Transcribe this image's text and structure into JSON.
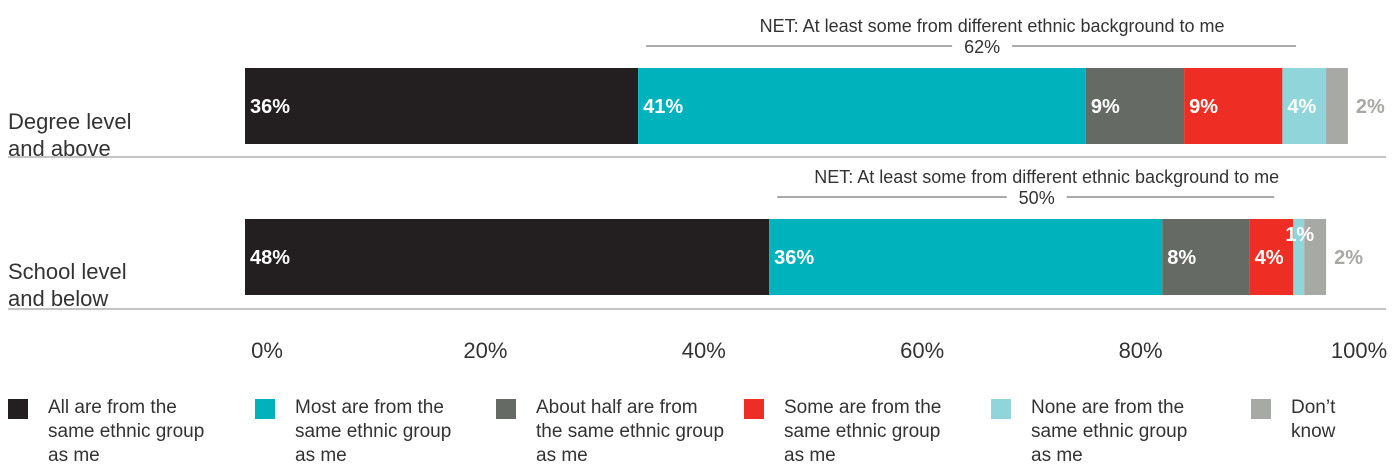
{
  "chart_data": {
    "type": "bar",
    "orientation": "horizontal",
    "stacked": true,
    "categories": [
      "Degree level\nand above",
      "School level\nand below"
    ],
    "series": [
      {
        "name": "All are from the\nsame ethnic group\nas me",
        "color": "#231f20",
        "values": [
          36,
          48
        ],
        "labels": [
          "36%",
          "48%"
        ]
      },
      {
        "name": "Most are from the\nsame ethnic group\nas me",
        "color": "#00b2bb",
        "values": [
          41,
          36
        ],
        "labels": [
          "41%",
          "36%"
        ]
      },
      {
        "name": "About half are from\nthe same ethnic group\nas me",
        "color": "#666a64",
        "values": [
          9,
          8
        ],
        "labels": [
          "9%",
          "8%"
        ]
      },
      {
        "name": "Some are from the\nsame ethnic group\nas me",
        "color": "#ee2e24",
        "values": [
          9,
          4
        ],
        "labels": [
          "9%",
          "4%"
        ]
      },
      {
        "name": "None are from the\nsame ethnic group\nas me",
        "color": "#8fd5d9",
        "values": [
          4,
          1
        ],
        "labels": [
          "4%",
          "1%"
        ]
      },
      {
        "name": "Don’t\nknow",
        "color": "#a7a9a5",
        "values": [
          2,
          2
        ],
        "labels": [
          "2%",
          "2%"
        ]
      }
    ],
    "net": [
      {
        "label": "NET: At least some from different ethnic background to me",
        "value": "62%"
      },
      {
        "label": "NET: At least some from different ethnic background to me",
        "value": "50%"
      }
    ],
    "xticks": [
      "0%",
      "20%",
      "40%",
      "60%",
      "80%",
      "100%"
    ],
    "xlim": [
      0,
      100
    ],
    "grid": false,
    "legend_position": "bottom"
  }
}
